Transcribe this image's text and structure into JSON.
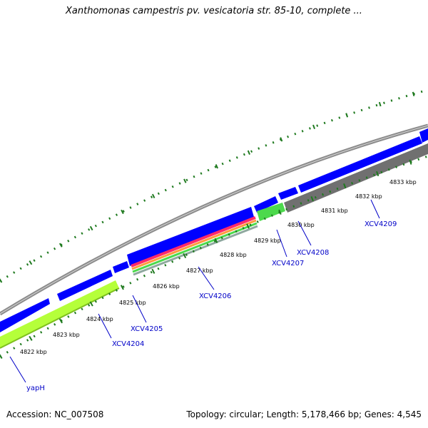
{
  "title": "Xanthomonas campestris pv. vesicatoria str. 85-10, complete ...",
  "footer": {
    "accession": "Accession: NC_007508",
    "summary": "Topology: circular; Length: 5,178,466 bp; Genes: 4,545"
  },
  "colors": {
    "forward_gene": "#0000ff",
    "reverse_gene": "#707070",
    "highlight_lime": "#b5ff3a",
    "highlight_green": "#4cd94c",
    "tick": "#1f7a1f",
    "backbone": "#8c8c8c",
    "label_blue": "#0000c8"
  },
  "map": {
    "ruler_labels": [
      "4822 kbp",
      "4823 kbp",
      "4824 kbp",
      "4825 kbp",
      "4826 kbp",
      "4827 kbp",
      "4828 kbp",
      "4829 kbp",
      "4830 kbp",
      "4831 kbp",
      "4832 kbp",
      "4833 kbp"
    ],
    "gene_labels": [
      "yapH",
      "XCV4204",
      "XCV4205",
      "XCV4206",
      "XCV4207",
      "XCV4208",
      "XCV4209"
    ]
  }
}
